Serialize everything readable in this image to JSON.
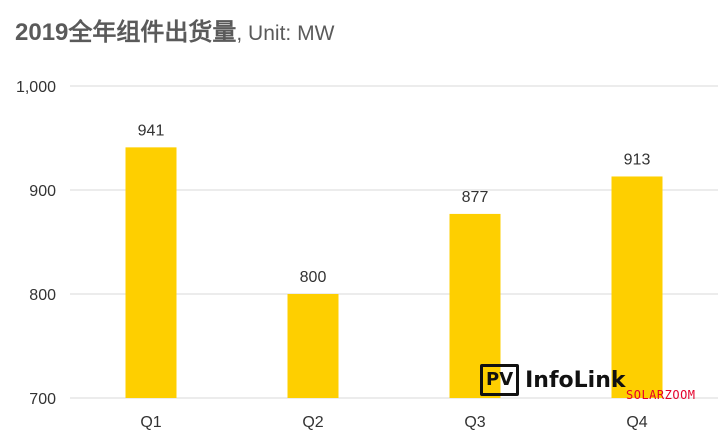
{
  "header": {
    "title": "2019全年组件出货量",
    "unit": ", Unit: MW"
  },
  "chart_data": {
    "type": "bar",
    "title": "2019全年组件出货量, Unit: MW",
    "categories": [
      "Q1",
      "Q2",
      "Q3",
      "Q4"
    ],
    "values": [
      941,
      800,
      877,
      913
    ],
    "ylim": [
      700,
      1000
    ],
    "yticks": [
      700,
      800,
      900,
      1000
    ],
    "ytick_labels": [
      "700",
      "800",
      "900",
      "1,000"
    ],
    "data_labels": [
      "941",
      "800",
      "877",
      "913"
    ],
    "grid": true,
    "bar_color": "#fecf00",
    "grid_color": "#d9d9d9"
  },
  "logo": {
    "badge": "PV",
    "name": "InfoLink"
  },
  "watermark": "SOLARZOOM"
}
